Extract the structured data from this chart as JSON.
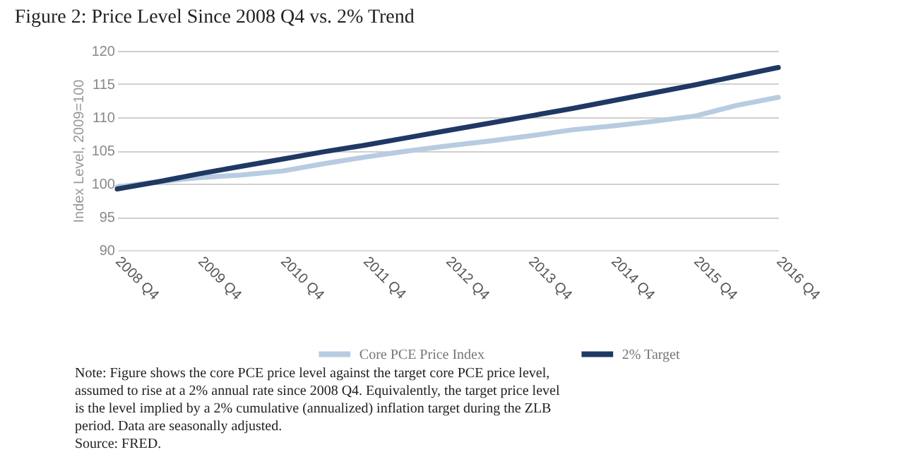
{
  "chart_data": {
    "type": "line",
    "title": "Figure 2: Price Level Since 2008 Q4 vs. 2% Trend",
    "ylabel": "Index Level, 2009=100",
    "categories": [
      "2008 Q4",
      null,
      "2009 Q4",
      null,
      "2010 Q4",
      null,
      "2011 Q4",
      null,
      "2012 Q4",
      null,
      "2013 Q4",
      null,
      "2014 Q4",
      null,
      "2015 Q4",
      null,
      "2016 Q4"
    ],
    "ylim": [
      90,
      120
    ],
    "yticks": [
      90,
      95,
      100,
      105,
      110,
      115,
      120
    ],
    "grid": "y",
    "legend": "bottom",
    "series": [
      {
        "name": "Core PCE Price Index",
        "color": "#b7cce0",
        "values": [
          99.5,
          100.3,
          100.9,
          101.3,
          101.9,
          103.0,
          104.0,
          104.9,
          105.7,
          106.4,
          107.2,
          108.1,
          108.7,
          109.4,
          110.2,
          111.8,
          113.0
        ]
      },
      {
        "name": "2% Target",
        "color": "#1f3864",
        "values": [
          99.2,
          100.3,
          101.5,
          102.6,
          103.7,
          104.8,
          105.8,
          106.9,
          108.0,
          109.1,
          110.2,
          111.3,
          112.5,
          113.7,
          114.9,
          116.2,
          117.5
        ]
      }
    ],
    "annotations": [
      "Note: Figure shows the core PCE price level against the target core PCE price level,\nassumed to rise at a 2% annual rate since 2008 Q4.  Equivalently, the target price level\nis the level implied by a 2% cumulative (annualized) inflation target during the ZLB\nperiod.  Data are seasonally adjusted.\nSource: FRED."
    ]
  }
}
